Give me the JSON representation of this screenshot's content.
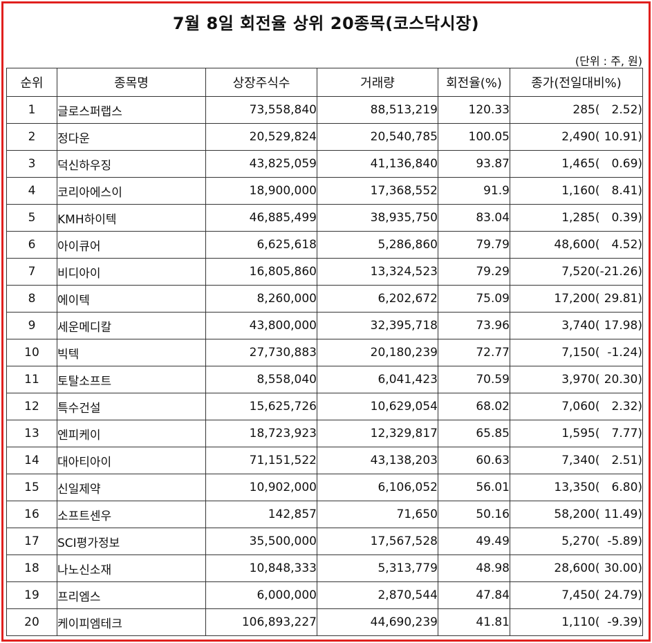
{
  "title": "7월 8일 회전율 상위 20종목(코스닥시장)",
  "unit": "(단위 : 주, 원)",
  "columns": [
    "순위",
    "종목명",
    "상장주식수",
    "거래량",
    "회전율(%)",
    "종가(전일대비%)"
  ],
  "rows": [
    {
      "rank": "1",
      "name": "글로스퍼랩스",
      "listed": "73,558,840",
      "volume": "88,513,219",
      "turnover": "120.33",
      "close": "285(",
      "change": "2.52)"
    },
    {
      "rank": "2",
      "name": "정다운",
      "listed": "20,529,824",
      "volume": "20,540,785",
      "turnover": "100.05",
      "close": "2,490(",
      "change": "10.91)"
    },
    {
      "rank": "3",
      "name": "덕신하우징",
      "listed": "43,825,059",
      "volume": "41,136,840",
      "turnover": "93.87",
      "close": "1,465(",
      "change": "0.69)"
    },
    {
      "rank": "4",
      "name": "코리아에스이",
      "listed": "18,900,000",
      "volume": "17,368,552",
      "turnover": "91.9",
      "close": "1,160(",
      "change": "8.41)"
    },
    {
      "rank": "5",
      "name": "KMH하이텍",
      "listed": "46,885,499",
      "volume": "38,935,750",
      "turnover": "83.04",
      "close": "1,285(",
      "change": "0.39)"
    },
    {
      "rank": "6",
      "name": "아이큐어",
      "listed": "6,625,618",
      "volume": "5,286,860",
      "turnover": "79.79",
      "close": "48,600(",
      "change": "4.52)"
    },
    {
      "rank": "7",
      "name": "비디아이",
      "listed": "16,805,860",
      "volume": "13,324,523",
      "turnover": "79.29",
      "close": "7,520(",
      "change": "-21.26)"
    },
    {
      "rank": "8",
      "name": "에이텍",
      "listed": "8,260,000",
      "volume": "6,202,672",
      "turnover": "75.09",
      "close": "17,200(",
      "change": "29.81)"
    },
    {
      "rank": "9",
      "name": "세운메디칼",
      "listed": "43,800,000",
      "volume": "32,395,718",
      "turnover": "73.96",
      "close": "3,740(",
      "change": "17.98)"
    },
    {
      "rank": "10",
      "name": "빅텍",
      "listed": "27,730,883",
      "volume": "20,180,239",
      "turnover": "72.77",
      "close": "7,150(",
      "change": "-1.24)"
    },
    {
      "rank": "11",
      "name": "토탈소프트",
      "listed": "8,558,040",
      "volume": "6,041,423",
      "turnover": "70.59",
      "close": "3,970(",
      "change": "20.30)"
    },
    {
      "rank": "12",
      "name": "특수건설",
      "listed": "15,625,726",
      "volume": "10,629,054",
      "turnover": "68.02",
      "close": "7,060(",
      "change": "2.32)"
    },
    {
      "rank": "13",
      "name": "엔피케이",
      "listed": "18,723,923",
      "volume": "12,329,817",
      "turnover": "65.85",
      "close": "1,595(",
      "change": "7.77)"
    },
    {
      "rank": "14",
      "name": "대아티아이",
      "listed": "71,151,522",
      "volume": "43,138,203",
      "turnover": "60.63",
      "close": "7,340(",
      "change": "2.51)"
    },
    {
      "rank": "15",
      "name": "신일제약",
      "listed": "10,902,000",
      "volume": "6,106,052",
      "turnover": "56.01",
      "close": "13,350(",
      "change": "6.80)"
    },
    {
      "rank": "16",
      "name": "소프트센우",
      "listed": "142,857",
      "volume": "71,650",
      "turnover": "50.16",
      "close": "58,200(",
      "change": "11.49)"
    },
    {
      "rank": "17",
      "name": "SCI평가정보",
      "listed": "35,500,000",
      "volume": "17,567,528",
      "turnover": "49.49",
      "close": "5,270(",
      "change": "-5.89)"
    },
    {
      "rank": "18",
      "name": "나노신소재",
      "listed": "10,848,333",
      "volume": "5,313,779",
      "turnover": "48.98",
      "close": "28,600(",
      "change": "30.00)"
    },
    {
      "rank": "19",
      "name": "프리엠스",
      "listed": "6,000,000",
      "volume": "2,870,544",
      "turnover": "47.84",
      "close": "7,450(",
      "change": "24.79)"
    },
    {
      "rank": "20",
      "name": "케이피엠테크",
      "listed": "106,893,227",
      "volume": "44,690,239",
      "turnover": "41.81",
      "close": "1,110(",
      "change": "-9.39)"
    }
  ]
}
